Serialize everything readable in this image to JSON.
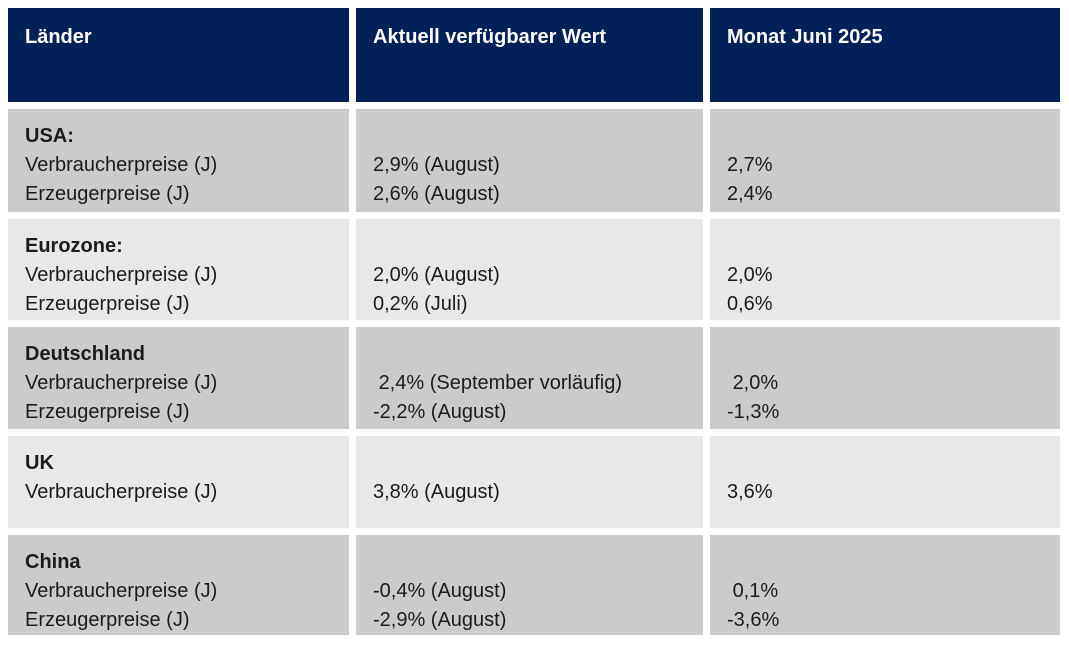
{
  "table": {
    "title_semantic": "Inflationsdaten nach Ländern",
    "header": {
      "columns": [
        "Länder",
        "Aktuell verfügbarer Wert",
        "Monat Juni 2025"
      ]
    },
    "rows": [
      {
        "country": "USA:",
        "labels": "Verbraucherpreise (J)\nErzeugerpreise (J)",
        "current_value": "2,9% (August)\n2,6% (August)",
        "june_2025": "2,7%\n2,4%"
      },
      {
        "country": "Eurozone:",
        "labels": "Verbraucherpreise (J)\nErzeugerpreise (J)",
        "current_value": "2,0% (August)\n0,2% (Juli)",
        "june_2025": "2,0%\n0,6%"
      },
      {
        "country": "Deutschland",
        "labels": "Verbraucherpreise (J)\nErzeugerpreise (J)",
        "current_value": " 2,4% (September vorläufig)\n-2,2% (August)",
        "june_2025": " 2,0%\n-1,3%"
      },
      {
        "country": "UK",
        "labels": "Verbraucherpreise (J)",
        "current_value": "3,8% (August)",
        "june_2025": "3,6%"
      },
      {
        "country": "China",
        "labels": "Verbraucherpreise (J)\nErzeugerpreise (J)",
        "current_value": "-0,4% (August)\n-2,9% (August)",
        "june_2025": " 0,1%\n-3,6%"
      }
    ],
    "colors": {
      "header_bg": "#022159",
      "header_text": "#FFFFFF",
      "row_bg_dark": "#CBCBCE",
      "row_bg_light": "#E8E8E9",
      "body_text": "#1B1B1B",
      "page_bg": "#FFFFFF"
    }
  }
}
